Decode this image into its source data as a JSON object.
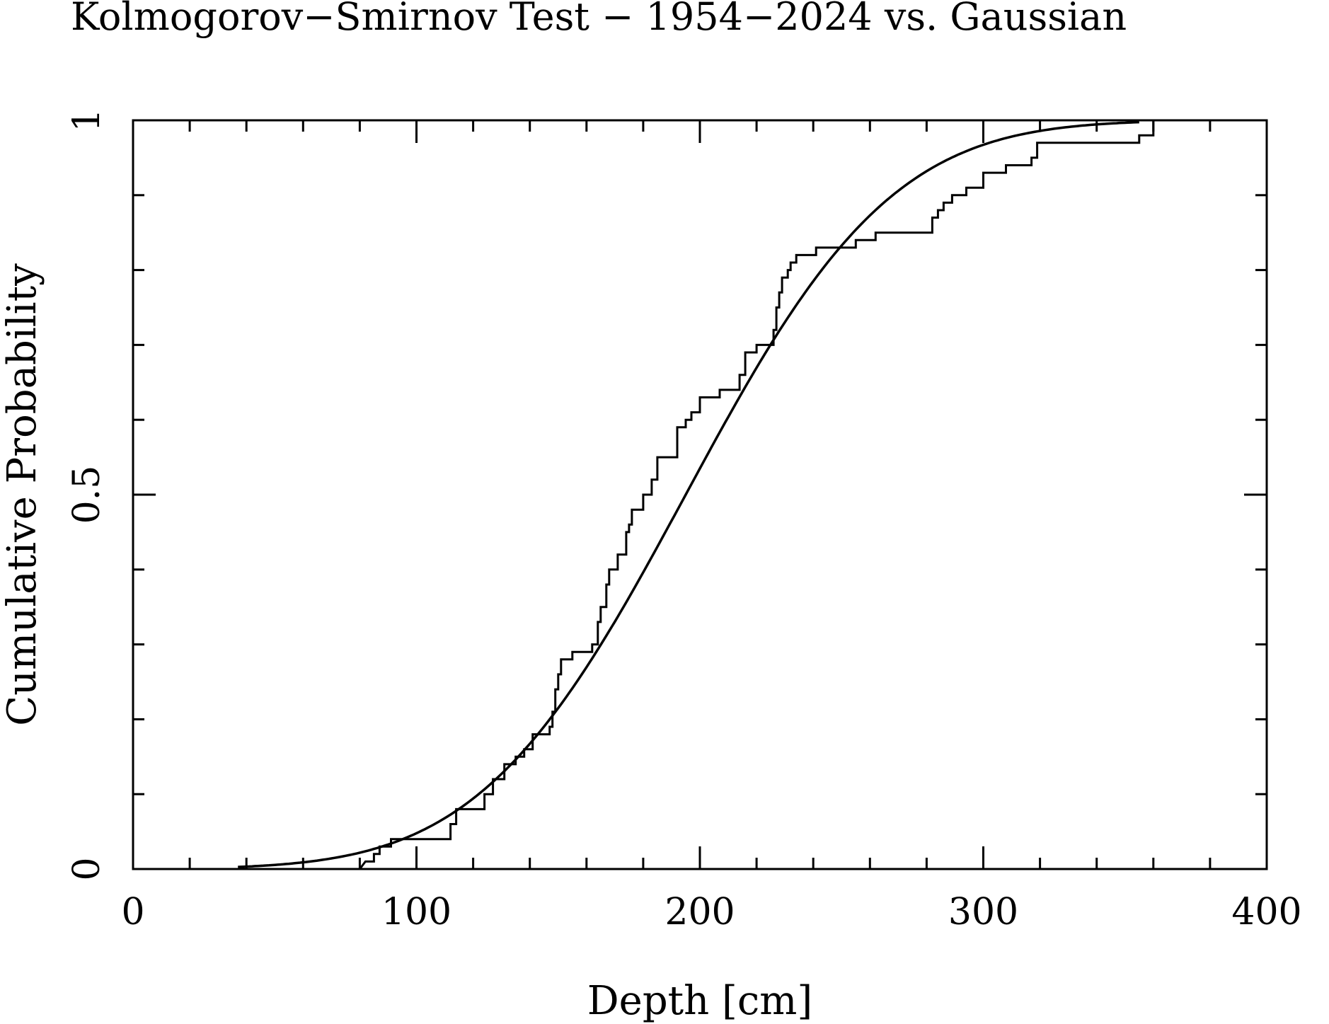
{
  "chart_data": {
    "type": "line",
    "title": "Kolmogorov−Smirnov Test − 1954−2024 vs. Gaussian",
    "xlabel": "Depth [cm]",
    "ylabel": "Cumulative Probability",
    "xlim": [
      0,
      400
    ],
    "ylim": [
      0,
      1
    ],
    "x_ticks": [
      0,
      100,
      200,
      300,
      400
    ],
    "x_tick_labels": [
      "0",
      "100",
      "200",
      "300",
      "400"
    ],
    "y_ticks": [
      0,
      0.5,
      1
    ],
    "y_tick_labels": [
      "0",
      "0.5",
      "1"
    ],
    "x_minor_step": 20,
    "y_minor_step": 0.1,
    "grid": false,
    "legend": "none",
    "series": [
      {
        "kind": "empirical-step",
        "points": [
          [
            80,
            0
          ],
          [
            82,
            0.01
          ],
          [
            85,
            0.01
          ],
          [
            85,
            0.02
          ],
          [
            87,
            0.02
          ],
          [
            87,
            0.03
          ],
          [
            91,
            0.03
          ],
          [
            91,
            0.04
          ],
          [
            112,
            0.04
          ],
          [
            112,
            0.06
          ],
          [
            114,
            0.06
          ],
          [
            114,
            0.08
          ],
          [
            124,
            0.08
          ],
          [
            124,
            0.1
          ],
          [
            127,
            0.1
          ],
          [
            127,
            0.12
          ],
          [
            131,
            0.12
          ],
          [
            131,
            0.14
          ],
          [
            135,
            0.14
          ],
          [
            135,
            0.15
          ],
          [
            138,
            0.15
          ],
          [
            138,
            0.16
          ],
          [
            141,
            0.16
          ],
          [
            141,
            0.18
          ],
          [
            147,
            0.18
          ],
          [
            147,
            0.19
          ],
          [
            148,
            0.19
          ],
          [
            148,
            0.21
          ],
          [
            149,
            0.21
          ],
          [
            149,
            0.24
          ],
          [
            150,
            0.24
          ],
          [
            150,
            0.26
          ],
          [
            151,
            0.26
          ],
          [
            151,
            0.28
          ],
          [
            155,
            0.28
          ],
          [
            155,
            0.29
          ],
          [
            162,
            0.29
          ],
          [
            162,
            0.3
          ],
          [
            164,
            0.3
          ],
          [
            164,
            0.33
          ],
          [
            165,
            0.33
          ],
          [
            165,
            0.35
          ],
          [
            167,
            0.35
          ],
          [
            167,
            0.38
          ],
          [
            168,
            0.38
          ],
          [
            168,
            0.4
          ],
          [
            171,
            0.4
          ],
          [
            171,
            0.42
          ],
          [
            174,
            0.42
          ],
          [
            174,
            0.45
          ],
          [
            175,
            0.45
          ],
          [
            175,
            0.46
          ],
          [
            176,
            0.46
          ],
          [
            176,
            0.48
          ],
          [
            180,
            0.48
          ],
          [
            180,
            0.5
          ],
          [
            183,
            0.5
          ],
          [
            183,
            0.52
          ],
          [
            185,
            0.52
          ],
          [
            185,
            0.55
          ],
          [
            192,
            0.55
          ],
          [
            192,
            0.59
          ],
          [
            195,
            0.59
          ],
          [
            195,
            0.6
          ],
          [
            197,
            0.6
          ],
          [
            197,
            0.61
          ],
          [
            200,
            0.61
          ],
          [
            200,
            0.63
          ],
          [
            207,
            0.63
          ],
          [
            207,
            0.64
          ],
          [
            214,
            0.64
          ],
          [
            214,
            0.66
          ],
          [
            216,
            0.66
          ],
          [
            216,
            0.69
          ],
          [
            220,
            0.69
          ],
          [
            220,
            0.7
          ],
          [
            226,
            0.7
          ],
          [
            226,
            0.72
          ],
          [
            227,
            0.72
          ],
          [
            227,
            0.75
          ],
          [
            228,
            0.75
          ],
          [
            228,
            0.77
          ],
          [
            229,
            0.77
          ],
          [
            229,
            0.79
          ],
          [
            231,
            0.79
          ],
          [
            231,
            0.8
          ],
          [
            232,
            0.8
          ],
          [
            232,
            0.81
          ],
          [
            234,
            0.81
          ],
          [
            234,
            0.82
          ],
          [
            241,
            0.82
          ],
          [
            241,
            0.83
          ],
          [
            255,
            0.83
          ],
          [
            255,
            0.84
          ],
          [
            262,
            0.84
          ],
          [
            262,
            0.85
          ],
          [
            282,
            0.85
          ],
          [
            282,
            0.87
          ],
          [
            284,
            0.87
          ],
          [
            284,
            0.88
          ],
          [
            286,
            0.88
          ],
          [
            286,
            0.89
          ],
          [
            289,
            0.89
          ],
          [
            289,
            0.9
          ],
          [
            294,
            0.9
          ],
          [
            294,
            0.91
          ],
          [
            300,
            0.91
          ],
          [
            300,
            0.93
          ],
          [
            308,
            0.93
          ],
          [
            308,
            0.94
          ],
          [
            317,
            0.94
          ],
          [
            317,
            0.95
          ],
          [
            319,
            0.95
          ],
          [
            319,
            0.97
          ],
          [
            355,
            0.97
          ],
          [
            355,
            0.98
          ],
          [
            360,
            0.98
          ],
          [
            360,
            1
          ],
          [
            362,
            1
          ]
        ]
      },
      {
        "kind": "gaussian-cdf",
        "mean": 195,
        "sigma": 57,
        "x_range": [
          37,
          355
        ]
      }
    ]
  }
}
